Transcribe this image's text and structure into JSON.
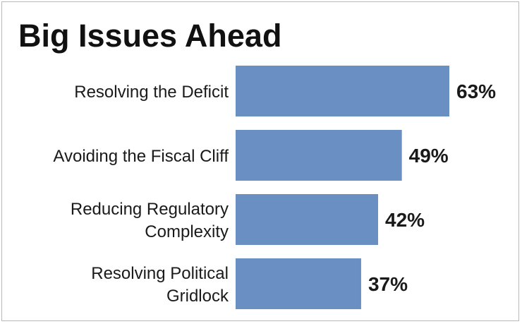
{
  "chart_data": {
    "type": "bar",
    "orientation": "horizontal",
    "title": "Big Issues Ahead",
    "categories": [
      [
        "Resolving the Deficit"
      ],
      [
        "Avoiding the Fiscal Cliff"
      ],
      [
        "Reducing Regulatory",
        "Complexity"
      ],
      [
        "Resolving Political",
        "Gridlock"
      ]
    ],
    "values": [
      63,
      49,
      42,
      37
    ],
    "value_labels": [
      "63%",
      "49%",
      "42%",
      "37%"
    ],
    "unit": "%",
    "xlim": [
      0,
      100
    ],
    "grid": false,
    "legend": "none",
    "bar_color": "#6a8fc2"
  }
}
